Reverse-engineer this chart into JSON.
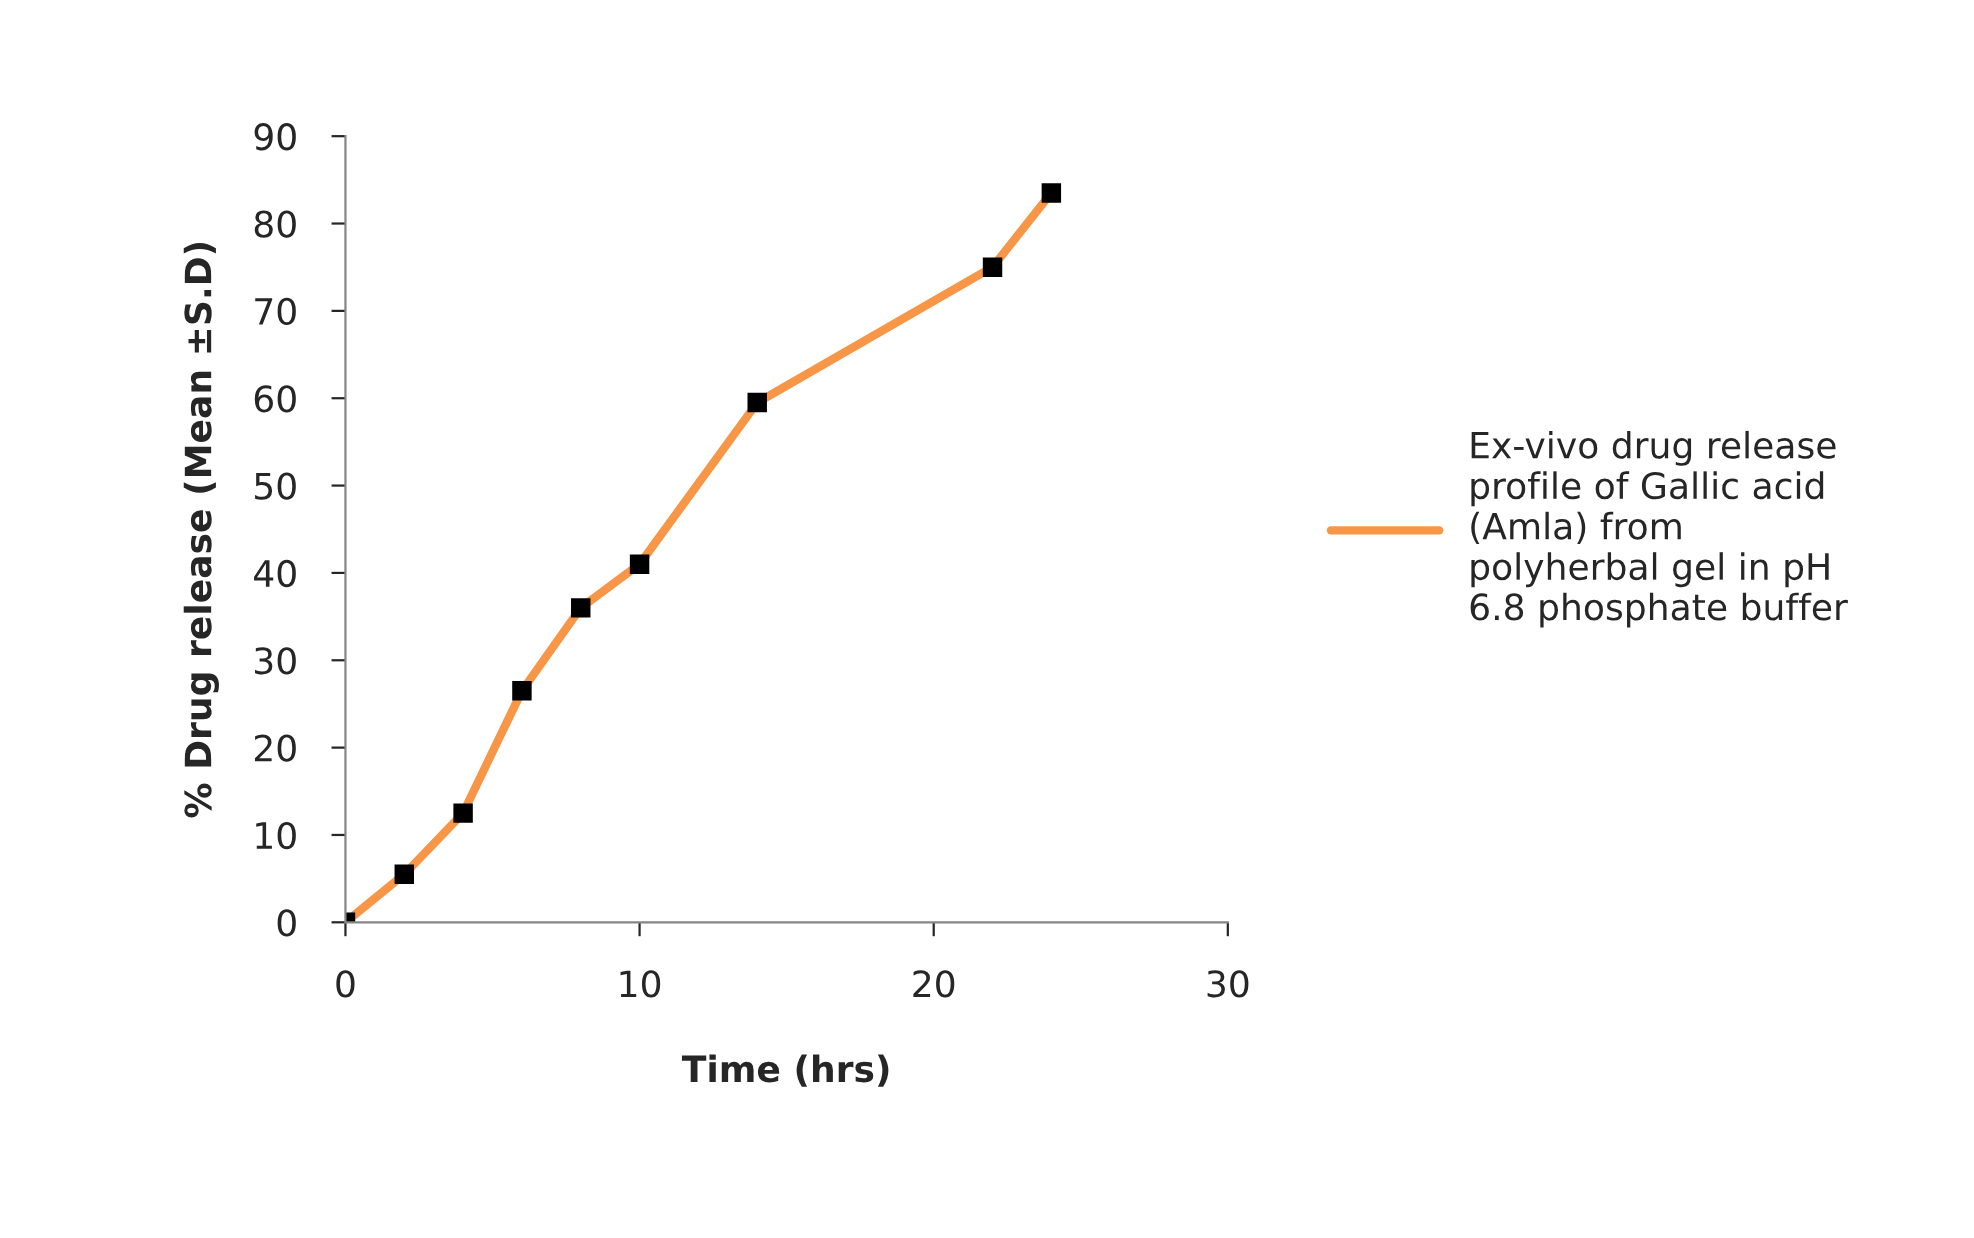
{
  "chart_data": {
    "type": "line",
    "xlabel": "Time (hrs)",
    "ylabel": "% Drug release (Mean ±S.D)",
    "x": [
      0,
      2,
      4,
      6,
      8,
      10,
      14,
      22,
      24
    ],
    "series": [
      {
        "name": "Ex-vivo drug release\nprofile of Gallic acid\n(Amla) from\npolyherbal gel in pH\n6.8 phosphate buffer",
        "color": "#f79646",
        "values": [
          0,
          5.5,
          12.5,
          26.5,
          36,
          41,
          59.5,
          75,
          83.5
        ]
      }
    ],
    "xlim": [
      0,
      30
    ],
    "xticks": [
      0,
      10,
      20,
      30
    ],
    "ylim": [
      0,
      90
    ],
    "yticks": [
      0,
      10,
      20,
      30,
      40,
      50,
      60,
      70,
      80,
      90
    ],
    "grid": false,
    "legend": "right",
    "marker": "square",
    "line_style": "solid"
  }
}
